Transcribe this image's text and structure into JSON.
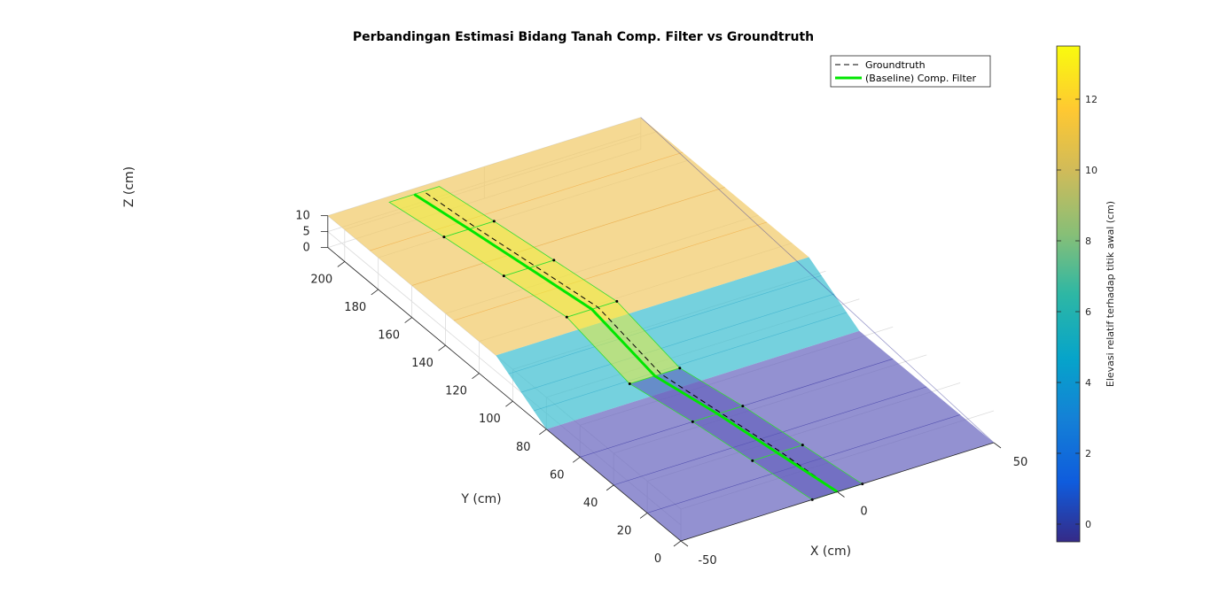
{
  "chart_data": {
    "type": "surface3d",
    "title": "Perbandingan Estimasi Bidang Tanah Comp. Filter vs Groundtruth",
    "xlabel": "X (cm)",
    "ylabel": "Y (cm)",
    "zlabel": "Z (cm)",
    "xlim": [
      -50,
      50
    ],
    "ylim": [
      0,
      210
    ],
    "zlim": [
      0,
      10
    ],
    "x_ticks": [
      "-50",
      "0",
      "50"
    ],
    "y_ticks": [
      "0",
      "20",
      "40",
      "60",
      "80",
      "100",
      "120",
      "140",
      "160",
      "180",
      "200"
    ],
    "z_ticks": [
      "0",
      "5",
      "10"
    ],
    "grid": true,
    "legend_position": "top-right",
    "legend": [
      {
        "label": "Groundtruth",
        "style": "dashed",
        "color": "#000000"
      },
      {
        "label": "(Baseline) Comp. Filter",
        "style": "solid",
        "color": "#00e600"
      }
    ],
    "colorbar": {
      "label": "Elevasi relatif terhadap titik awal (cm)",
      "ticks": [
        "0",
        "2",
        "4",
        "6",
        "8",
        "10",
        "12"
      ],
      "range": [
        -0.5,
        13.5
      ],
      "colormap": "parula"
    },
    "surface": {
      "y_breaks": [
        0,
        80,
        110,
        210
      ],
      "z_breaks": [
        0,
        0,
        10,
        10
      ],
      "colors": [
        "#6a66bf",
        "#40bfd1",
        "#f1ca6a"
      ]
    },
    "groundtruth": {
      "x": [
        0,
        -2,
        -5,
        -8,
        -12,
        -16,
        -19,
        -21
      ],
      "y": [
        0,
        30,
        60,
        90,
        120,
        150,
        180,
        207
      ],
      "z": [
        0,
        0,
        0,
        0,
        9,
        10,
        10,
        10
      ]
    },
    "comp_filter": {
      "x": [
        0,
        -3,
        -6,
        -10,
        -14,
        -18,
        -21,
        -24
      ],
      "y": [
        0,
        30,
        60,
        90,
        120,
        150,
        180,
        207
      ],
      "z": [
        0,
        0,
        0,
        0,
        9,
        10,
        10,
        10
      ]
    }
  }
}
